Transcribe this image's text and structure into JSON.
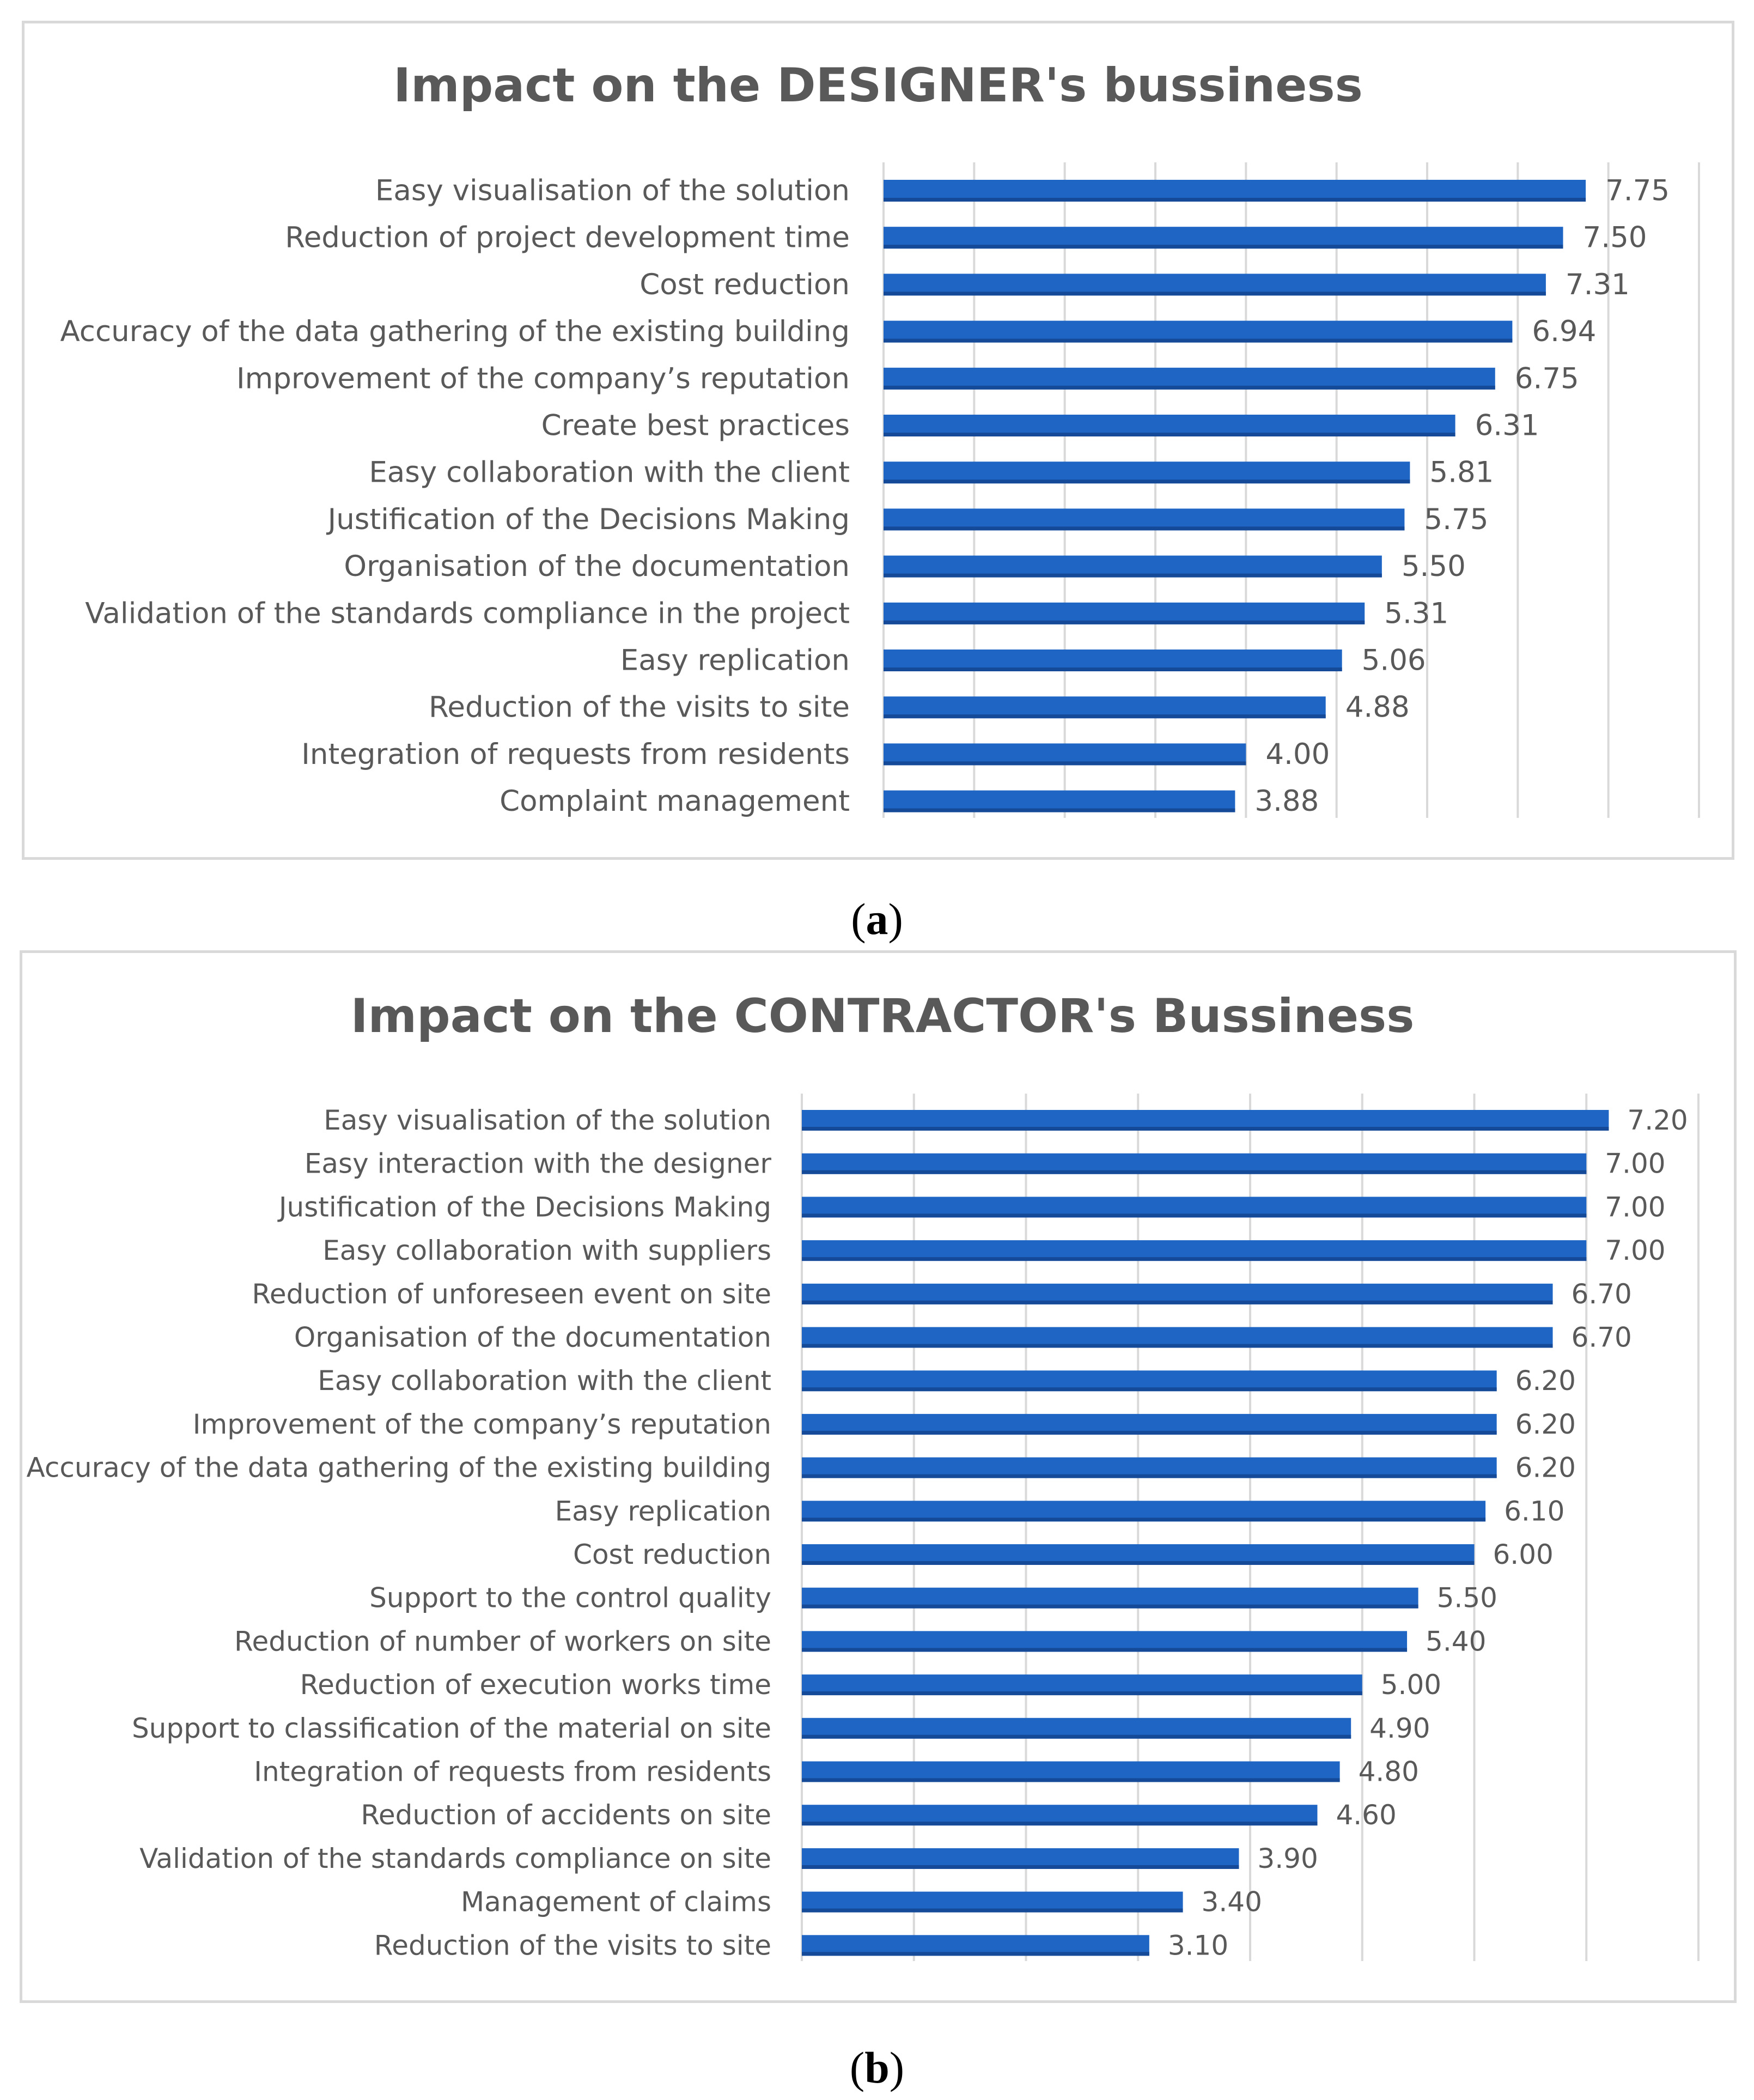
{
  "colors": {
    "bar": "#1f66c4",
    "bar_dark": "#154a99",
    "grid": "#d9d9d9",
    "text": "#595959",
    "border": "#d9d9d9"
  },
  "captions": {
    "a": "a",
    "b": "b"
  },
  "chart_data": [
    {
      "id": "a",
      "type": "bar",
      "orientation": "horizontal",
      "title": "Impact on the DESIGNER's bussiness",
      "xlim": [
        0,
        9
      ],
      "grid": true,
      "categories": [
        "Easy visualisation of the solution",
        "Reduction of project development time",
        "Cost reduction",
        "Accuracy of the data gathering of  the existing building",
        "Improvement of the company’s reputation",
        "Create best practices",
        "Easy collaboration with the client",
        "Justification of the Decisions Making",
        "Organisation of the documentation",
        "Validation of the standards compliance in the project",
        "Easy replication",
        "Reduction of the visits to site",
        "Integration of requests from residents",
        "Complaint management"
      ],
      "values": [
        7.75,
        7.5,
        7.31,
        6.94,
        6.75,
        6.31,
        5.81,
        5.75,
        5.5,
        5.31,
        5.06,
        4.88,
        4.0,
        3.88
      ],
      "value_labels": [
        "7.75",
        "7.50",
        "7.31",
        "6.94",
        "6.75",
        "6.31",
        "5.81",
        "5.75",
        "5.50",
        "5.31",
        "5.06",
        "4.88",
        "4.00",
        "3.88"
      ]
    },
    {
      "id": "b",
      "type": "bar",
      "orientation": "horizontal",
      "title": "Impact on the CONTRACTOR's  Bussiness",
      "xlim": [
        0,
        8
      ],
      "grid": true,
      "categories": [
        "Easy visualisation of the solution",
        "Easy interaction with the designer",
        "Justification of the Decisions Making",
        "Easy collaboration with suppliers",
        "Reduction of unforeseen event on site",
        "Organisation of the documentation",
        "Easy collaboration with the client",
        "Improvement of the company’s reputation",
        "Accuracy of the data gathering of the existing building",
        "Easy replication",
        "Cost reduction",
        "Support to the control quality",
        "Reduction of number of workers on site",
        "Reduction of execution works time",
        "Support to classification of the material on site",
        "Integration of requests from residents",
        "Reduction of accidents on site",
        "Validation of the standards compliance on site",
        "Management of claims",
        "Reduction of the visits to site"
      ],
      "values": [
        7.2,
        7.0,
        7.0,
        7.0,
        6.7,
        6.7,
        6.2,
        6.2,
        6.2,
        6.1,
        6.0,
        5.5,
        5.4,
        5.0,
        4.9,
        4.8,
        4.6,
        3.9,
        3.4,
        3.1
      ],
      "value_labels": [
        "7.20",
        "7.00",
        "7.00",
        "7.00",
        "6.70",
        "6.70",
        "6.20",
        "6.20",
        "6.20",
        "6.10",
        "6.00",
        "5.50",
        "5.40",
        "5.00",
        "4.90",
        "4.80",
        "4.60",
        "3.90",
        "3.40",
        "3.10"
      ]
    }
  ]
}
